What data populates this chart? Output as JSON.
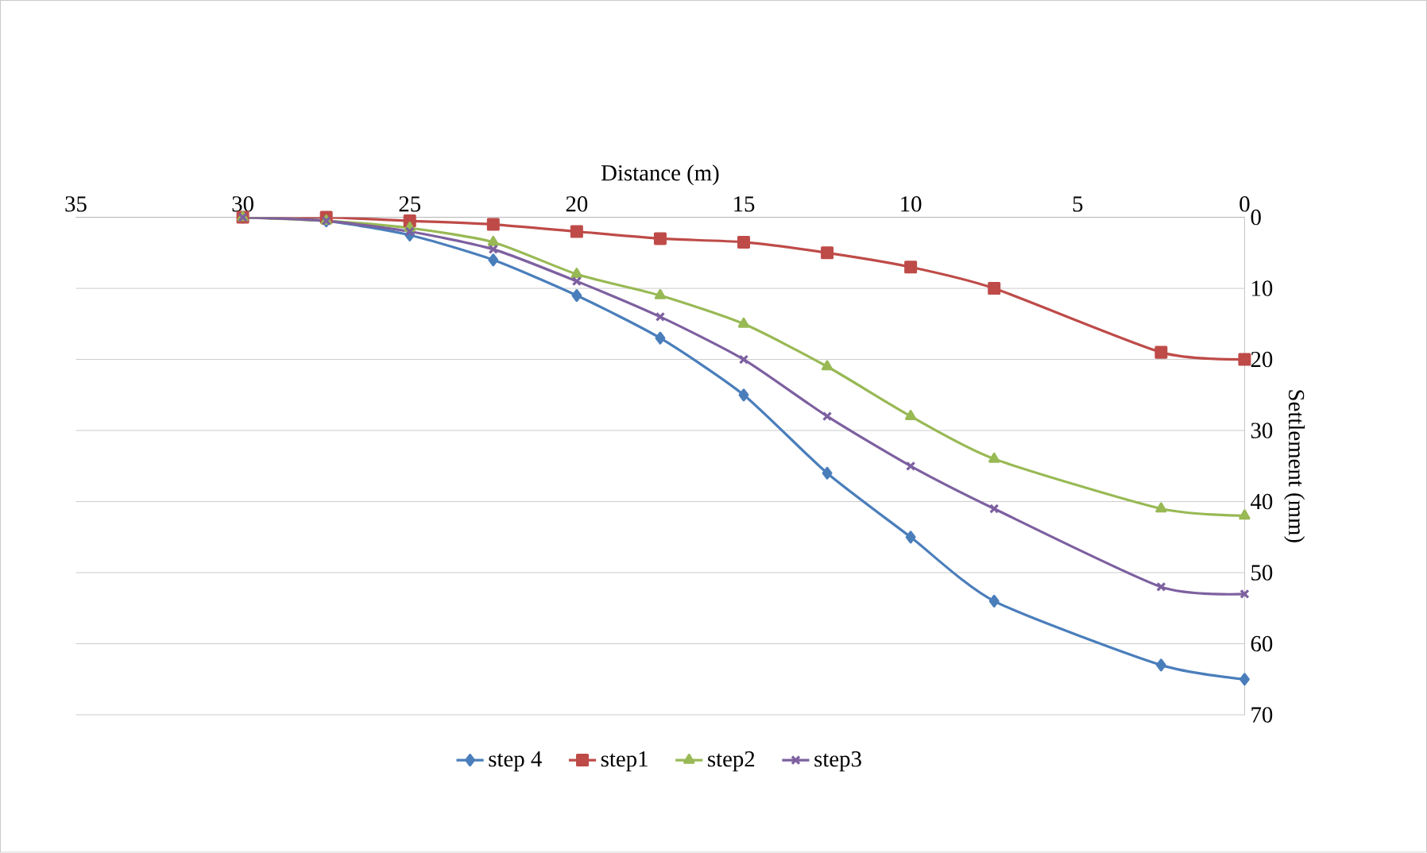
{
  "chart_data": {
    "type": "line",
    "xlabel": "Distance (m)",
    "ylabel": "Settlement (mm)",
    "x": [
      30,
      27.5,
      25,
      22.5,
      20,
      17.5,
      15,
      12.5,
      10,
      7.5,
      2.5,
      0
    ],
    "xlim": [
      35,
      0
    ],
    "xticks": [
      35,
      30,
      25,
      20,
      15,
      10,
      5,
      0
    ],
    "ylim": [
      70,
      0
    ],
    "yticks": [
      0,
      10,
      20,
      30,
      40,
      50,
      60,
      70
    ],
    "grid": "y",
    "legend": "bottom",
    "line_style": "solid",
    "series": [
      {
        "name": "step 4",
        "color": "#4a7ebb",
        "marker": "diamond",
        "values": [
          0,
          0.5,
          2.5,
          6,
          11,
          17,
          25,
          36,
          45,
          54,
          63,
          65
        ]
      },
      {
        "name": "step1",
        "color": "#be4b48",
        "marker": "square",
        "values": [
          0,
          0,
          0.5,
          1,
          2,
          3,
          3.5,
          5,
          7,
          10,
          19,
          20
        ]
      },
      {
        "name": "step2",
        "color": "#98b954",
        "marker": "triangle",
        "values": [
          0,
          0.5,
          1.5,
          3.5,
          8,
          11,
          15,
          21,
          28,
          34,
          41,
          42
        ]
      },
      {
        "name": "step3",
        "color": "#7d60a0",
        "marker": "cross",
        "values": [
          0,
          0.5,
          2,
          4.5,
          9,
          14,
          20,
          28,
          35,
          41,
          52,
          53
        ]
      }
    ]
  }
}
